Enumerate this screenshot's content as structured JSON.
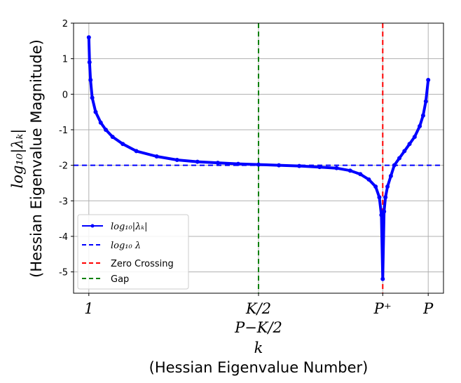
{
  "chart_data": {
    "type": "line",
    "x_ticks": [
      {
        "pos": 0.0,
        "lines": [
          "1"
        ]
      },
      {
        "pos": 0.5,
        "lines": [
          "K/2",
          "P−K/2"
        ]
      },
      {
        "pos": 0.866,
        "lines": [
          "P⁺"
        ]
      },
      {
        "pos": 1.0,
        "lines": [
          "P"
        ]
      }
    ],
    "xlim": [
      -0.045,
      1.045
    ],
    "ylabel_main": "log₁₀|λₖ|",
    "ylabel_sub": "(Hessian Eigenvalue Magnitude)",
    "xlabel_main": "k",
    "xlabel_sub": "(Hessian Eigenvalue Number)",
    "ylim": [
      -5.6,
      2.0
    ],
    "yticks": [
      2,
      1,
      0,
      -1,
      -2,
      -3,
      -4,
      -5
    ],
    "grid": true,
    "legend_position": "lower-left",
    "series": [
      {
        "name": "log₁₀|λₖ|",
        "color": "#0000ff",
        "style": "line-with-dots",
        "x": [
          0,
          0.002,
          0.005,
          0.01,
          0.02,
          0.035,
          0.05,
          0.07,
          0.1,
          0.14,
          0.2,
          0.26,
          0.32,
          0.38,
          0.44,
          0.5,
          0.56,
          0.62,
          0.68,
          0.73,
          0.77,
          0.8,
          0.825,
          0.845,
          0.856,
          0.862,
          0.866,
          0.87,
          0.874,
          0.88,
          0.89,
          0.9,
          0.915,
          0.93,
          0.945,
          0.96,
          0.975,
          0.985,
          0.993,
          1.0
        ],
        "y": [
          1.6,
          0.9,
          0.4,
          -0.1,
          -0.5,
          -0.8,
          -1.0,
          -1.2,
          -1.4,
          -1.6,
          -1.75,
          -1.85,
          -1.9,
          -1.93,
          -1.96,
          -1.98,
          -2.0,
          -2.02,
          -2.05,
          -2.08,
          -2.15,
          -2.25,
          -2.4,
          -2.6,
          -2.9,
          -3.4,
          -5.2,
          -3.3,
          -2.9,
          -2.6,
          -2.3,
          -2.0,
          -1.8,
          -1.6,
          -1.4,
          -1.2,
          -0.9,
          -0.6,
          -0.2,
          0.4
        ]
      },
      {
        "name": "log₁₀ λ",
        "color": "#0000ff",
        "style": "dashed-horizontal",
        "y": -2.0
      },
      {
        "name": "Zero Crossing",
        "color": "#ff0000",
        "style": "dashed-vertical",
        "x": 0.866
      },
      {
        "name": "Gap",
        "color": "#008000",
        "style": "dashed-vertical",
        "x": 0.5
      }
    ]
  },
  "legend": {
    "items": [
      {
        "label": "log₁₀|λₖ|",
        "math": true
      },
      {
        "label": "log₁₀ λ",
        "math": true
      },
      {
        "label": "Zero Crossing",
        "math": false
      },
      {
        "label": "Gap",
        "math": false
      }
    ]
  }
}
